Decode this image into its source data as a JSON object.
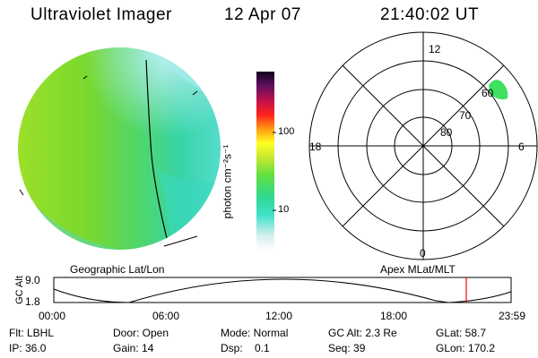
{
  "header": {
    "title": "Ultraviolet Imager",
    "date": "12 Apr 07",
    "time": "21:40:02 UT"
  },
  "colorbar": {
    "label": "photon cm⁻²s⁻¹",
    "ticks": [
      "100",
      "10"
    ]
  },
  "polar": {
    "mlt_labels": [
      "12",
      "18",
      "6",
      "0"
    ],
    "lat_labels": [
      "60",
      "70",
      "80"
    ]
  },
  "timeline": {
    "left_title": "Geographic Lat/Lon",
    "right_title": "Apex  MLat/MLT",
    "y_title": "GC Alt",
    "y_ticks": [
      "9.0",
      "1.8"
    ],
    "x_ticks": [
      "00:00",
      "06:00",
      "12:00",
      "18:00",
      "23:59"
    ]
  },
  "info": {
    "flt": "Flt: LBHL",
    "door": "Door: Open",
    "mode": "Mode: Normal",
    "gcalt": "GC Alt: 2.3 Re",
    "glat": "GLat: 58.7",
    "ip": "IP: 36.0",
    "gain": "Gain: 14",
    "dsp": "Dsp:    0.1",
    "seq": "Seq: 39",
    "glon": "GLon: 170.2"
  },
  "colors": {
    "disk_main": "#7ddc2a",
    "disk_cyan": "#3fe0c8",
    "marker": "#ff0000"
  }
}
